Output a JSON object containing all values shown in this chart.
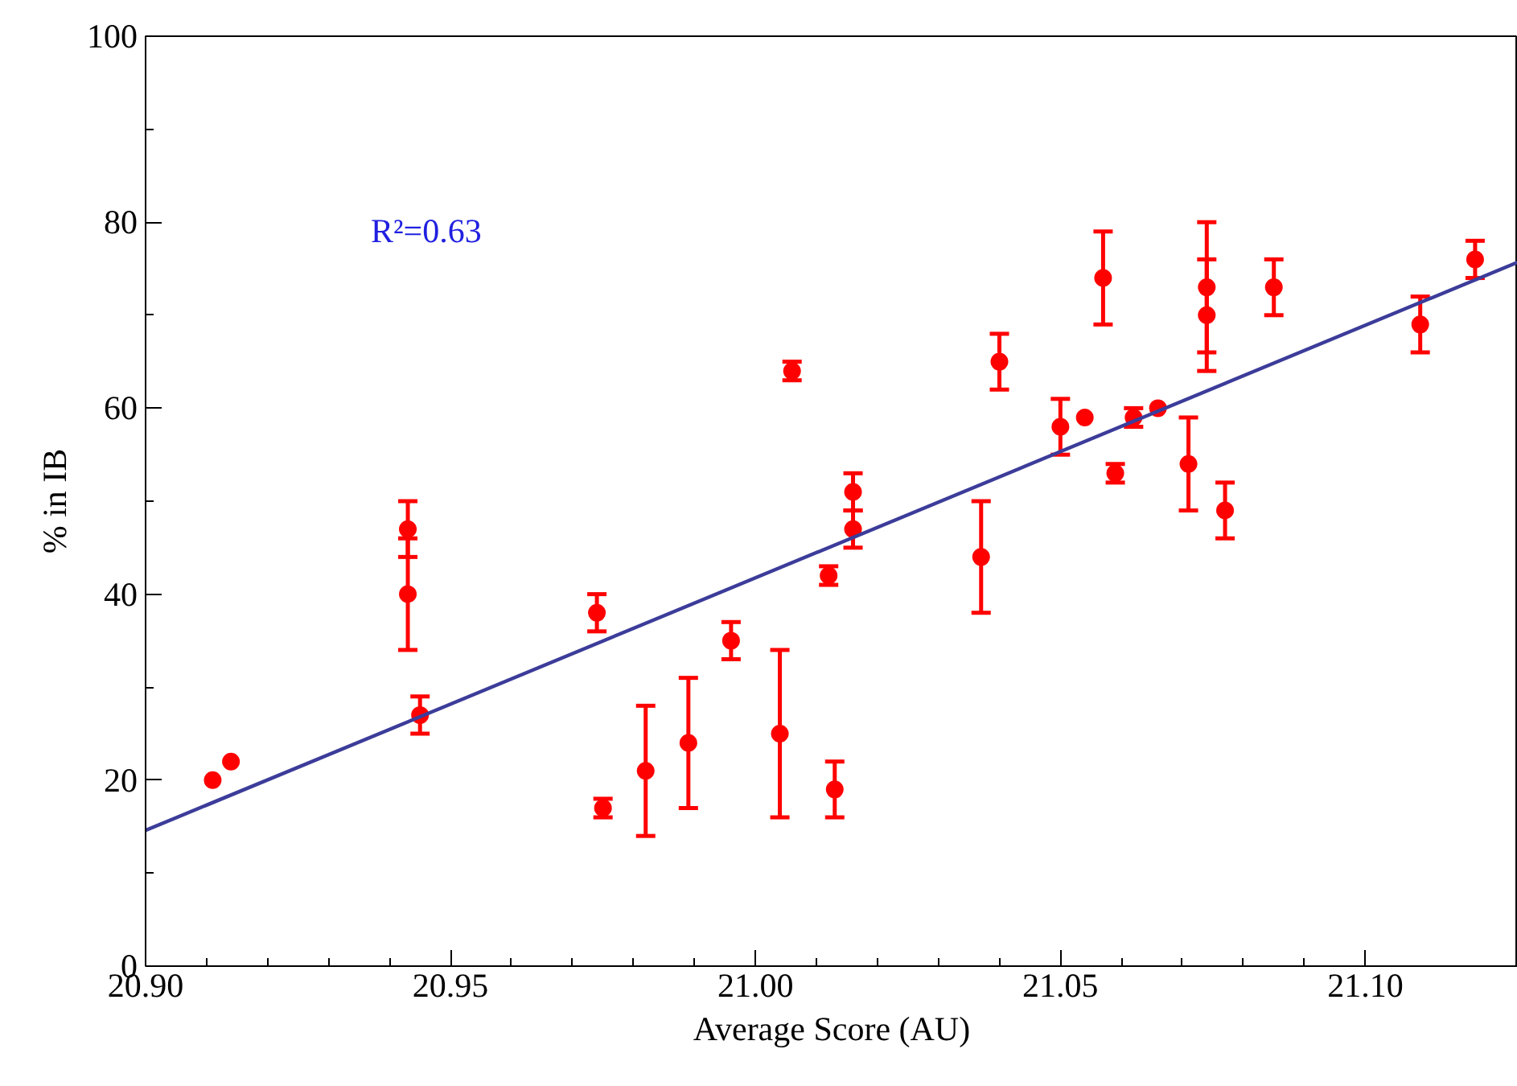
{
  "chart_data": {
    "type": "scatter",
    "xlabel": "Average Score (AU)",
    "ylabel": "% in IB",
    "annotations": [
      "R²=0.63"
    ],
    "xlim": [
      20.9,
      21.125
    ],
    "ylim": [
      0,
      100
    ],
    "xticks": [
      {
        "value": 20.9,
        "label": "20.90"
      },
      {
        "value": 20.95,
        "label": "20.95"
      },
      {
        "value": 21.0,
        "label": "21.00"
      },
      {
        "value": 21.05,
        "label": "21.05"
      },
      {
        "value": 21.1,
        "label": "21.10"
      }
    ],
    "yticks": [
      0,
      20,
      40,
      60,
      80,
      100
    ],
    "grid": false,
    "marker": "circle",
    "series": [
      {
        "color": "#ff0000",
        "x": [
          20.911,
          20.914,
          20.943,
          20.943,
          20.945,
          20.974,
          20.975,
          20.982,
          20.989,
          20.996,
          21.004,
          21.006,
          21.012,
          21.013,
          21.016,
          21.016,
          21.037,
          21.04,
          21.05,
          21.054,
          21.057,
          21.059,
          21.062,
          21.066,
          21.071,
          21.074,
          21.074,
          21.077,
          21.085,
          21.109,
          21.118
        ],
        "values": [
          20,
          22,
          47,
          40,
          27,
          38,
          17,
          21,
          24,
          35,
          25,
          64,
          42,
          19,
          51,
          47,
          44,
          65,
          58,
          59,
          74,
          53,
          59,
          60,
          54,
          73,
          70,
          49,
          73,
          69,
          76
        ],
        "errors": [
          null,
          null,
          [
            44,
            50
          ],
          [
            34,
            46
          ],
          [
            25,
            29
          ],
          [
            36,
            40
          ],
          [
            16,
            18
          ],
          [
            14,
            28
          ],
          [
            17,
            31
          ],
          [
            33,
            37
          ],
          [
            16,
            34
          ],
          [
            63,
            65
          ],
          [
            41,
            43
          ],
          [
            16,
            22
          ],
          [
            49,
            53
          ],
          [
            45,
            49
          ],
          [
            38,
            50
          ],
          [
            62,
            68
          ],
          [
            55,
            61
          ],
          null,
          [
            69,
            79
          ],
          [
            52,
            54
          ],
          [
            58,
            60
          ],
          null,
          [
            49,
            59
          ],
          [
            66,
            80
          ],
          [
            64,
            76
          ],
          [
            46,
            52
          ],
          [
            70,
            76
          ],
          [
            66,
            72
          ],
          [
            74,
            78
          ]
        ]
      },
      {
        "type": "line",
        "color": "#3c3c9a",
        "marker": "none",
        "x": [
          20.9,
          21.125
        ],
        "values": [
          14.6,
          75.7
        ]
      }
    ]
  }
}
